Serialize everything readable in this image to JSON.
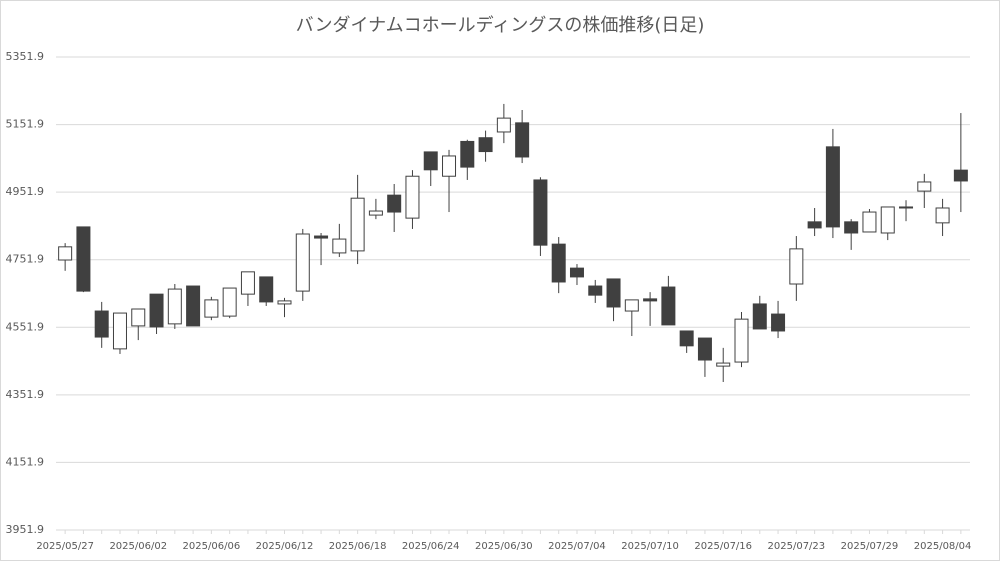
{
  "chart_data": {
    "type": "candlestick",
    "title": "バンダイナムコホールディングスの株価推移(日足)",
    "categories": [
      "2025/05/27",
      null,
      null,
      null,
      "2025/06/02",
      null,
      null,
      null,
      "2025/06/06",
      null,
      null,
      null,
      "2025/06/12",
      null,
      null,
      null,
      "2025/06/18",
      null,
      null,
      null,
      "2025/06/24",
      null,
      null,
      null,
      "2025/06/30",
      null,
      null,
      null,
      "2025/07/04",
      null,
      null,
      null,
      "2025/07/10",
      null,
      null,
      null,
      "2025/07/16",
      null,
      null,
      null,
      "2025/07/23",
      null,
      null,
      null,
      "2025/07/29",
      null,
      null,
      null,
      "2025/08/04",
      null
    ],
    "open": [
      4751,
      4849,
      4600,
      4488,
      4556,
      4650,
      4562,
      4674,
      4582,
      4585,
      4650,
      4701,
      4621,
      4659,
      4822,
      4772,
      4778,
      4884,
      4943,
      4875,
      5071,
      4999,
      5102,
      5113,
      5130,
      5157,
      4988,
      4798,
      4727,
      4674,
      4695,
      4600,
      4636,
      4671,
      4541,
      4520,
      4437,
      4449,
      4621,
      4591,
      4680,
      4864,
      5086,
      4864,
      4834,
      4831,
      4905,
      4955,
      4861,
      5017
    ],
    "high": [
      4801,
      4849,
      4627,
      4594,
      4606,
      4650,
      4680,
      4674,
      4642,
      4668,
      4716,
      4701,
      4639,
      4843,
      4831,
      4858,
      5003,
      4932,
      4976,
      5017,
      5071,
      5077,
      5107,
      5134,
      5213,
      5195,
      4996,
      4819,
      4739,
      4692,
      4695,
      4633,
      4656,
      4704,
      4541,
      4520,
      4491,
      4597,
      4645,
      4630,
      4822,
      4905,
      5139,
      4872,
      4902,
      4908,
      4928,
      5006,
      4932,
      5186
    ],
    "low": [
      4719,
      4656,
      4491,
      4473,
      4514,
      4532,
      4547,
      4556,
      4573,
      4579,
      4615,
      4615,
      4582,
      4630,
      4736,
      4760,
      4739,
      4872,
      4834,
      4843,
      4970,
      4893,
      4988,
      5042,
      5097,
      5038,
      4763,
      4653,
      4677,
      4624,
      4570,
      4526,
      4556,
      4559,
      4476,
      4405,
      4390,
      4434,
      4547,
      4520,
      4630,
      4822,
      4816,
      4781,
      4834,
      4810,
      4866,
      4905,
      4822,
      4893
    ],
    "close": [
      4790,
      4659,
      4523,
      4594,
      4606,
      4553,
      4665,
      4556,
      4633,
      4668,
      4716,
      4627,
      4630,
      4828,
      4816,
      4813,
      4934,
      4896,
      4893,
      4999,
      5018,
      5059,
      5026,
      5072,
      5171,
      5056,
      4795,
      4686,
      4701,
      4647,
      4612,
      4633,
      4630,
      4559,
      4497,
      4455,
      4446,
      4576,
      4547,
      4541,
      4784,
      4846,
      4849,
      4831,
      4893,
      4908,
      4908,
      4982,
      4905,
      4985
    ],
    "up_color": "#ffffff",
    "down_color": "#404040",
    "ylim": [
      3951.9,
      5351.9
    ],
    "yticks": [
      3951.9,
      4151.9,
      4351.9,
      4551.9,
      4751.9,
      4951.9,
      5151.9,
      5351.9
    ],
    "grid": true
  }
}
